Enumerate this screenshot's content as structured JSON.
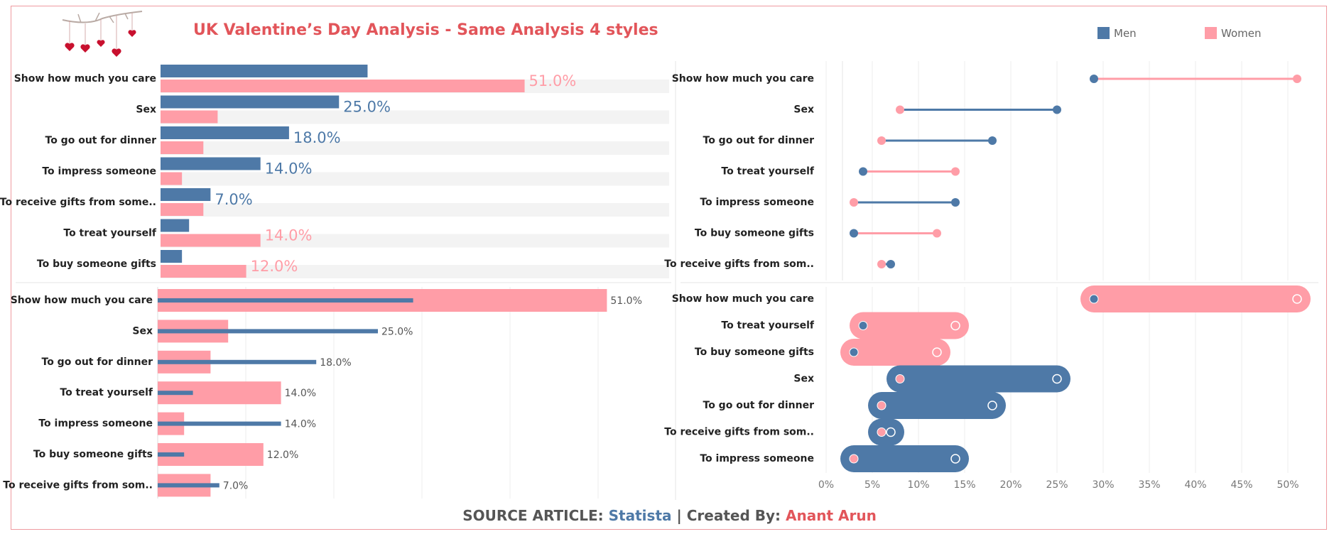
{
  "title": "UK Valentine’s Day Analysis - Same Analysis 4 styles",
  "legend": {
    "men": "Men",
    "women": "Women"
  },
  "colors": {
    "men": "#4e79a7",
    "women": "#ff9da7",
    "title": "#e2555a",
    "band": "#f3f3f3",
    "grid": "#ececec"
  },
  "footer": {
    "source_label": "SOURCE ARTICLE:",
    "source": "Statista",
    "sep": "|",
    "created_label": "Created By:",
    "author": "Anant Arun"
  },
  "decor": {
    "header_icon": "hearts-branch-icon"
  },
  "chart_data": [
    {
      "type": "bar",
      "style": "grouped horizontal bars, labeled on larger bar",
      "title": "",
      "categories": [
        "Show how much you care",
        "Sex",
        "To go out for dinner",
        "To impress someone",
        "To receive gifts from some..",
        "To treat yourself",
        "To buy someone gifts"
      ],
      "series": [
        {
          "name": "Men",
          "values": [
            29,
            25,
            18,
            14,
            7,
            4,
            3
          ]
        },
        {
          "name": "Women",
          "values": [
            51,
            8,
            6,
            3,
            6,
            14,
            12
          ]
        }
      ],
      "labels": [
        {
          "text": "51.0%",
          "series": "Women"
        },
        {
          "text": "25.0%",
          "series": "Men"
        },
        {
          "text": "18.0%",
          "series": "Men"
        },
        {
          "text": "14.0%",
          "series": "Men"
        },
        {
          "text": "7.0%",
          "series": "Men"
        },
        {
          "text": "14.0%",
          "series": "Women"
        },
        {
          "text": "12.0%",
          "series": "Women"
        }
      ],
      "xlim": [
        0,
        60
      ]
    },
    {
      "type": "bar",
      "style": "bullet bars (Women wide bar, Men thin bar)",
      "title": "",
      "categories": [
        "Show how much you care",
        "Sex",
        "To go out for dinner",
        "To treat yourself",
        "To impress someone",
        "To buy someone gifts",
        "To receive gifts from som.."
      ],
      "series": [
        {
          "name": "Men",
          "values": [
            29,
            25,
            18,
            4,
            14,
            3,
            7
          ]
        },
        {
          "name": "Women",
          "values": [
            51,
            8,
            6,
            14,
            3,
            12,
            6
          ]
        }
      ],
      "labels": [
        "51.0%",
        "25.0%",
        "18.0%",
        "14.0%",
        "14.0%",
        "12.0%",
        "7.0%"
      ],
      "xlim": [
        0,
        58
      ]
    },
    {
      "type": "scatter",
      "style": "dumbbell",
      "title": "",
      "categories": [
        "Show how much you care",
        "Sex",
        "To go out for dinner",
        "To treat yourself",
        "To impress someone",
        "To buy someone gifts",
        "To receive gifts from som.."
      ],
      "series": [
        {
          "name": "Men",
          "values": [
            29,
            25,
            18,
            4,
            14,
            3,
            7
          ]
        },
        {
          "name": "Women",
          "values": [
            51,
            8,
            6,
            14,
            3,
            12,
            6
          ]
        }
      ],
      "xlim": [
        0,
        52.5
      ]
    },
    {
      "type": "scatter",
      "style": "capsule dumbbell",
      "title": "",
      "categories": [
        "Show how much you care",
        "To treat yourself",
        "To buy someone gifts",
        "Sex",
        "To go out for dinner",
        "To receive gifts from som..",
        "To impress someone"
      ],
      "series": [
        {
          "name": "Men",
          "values": [
            29,
            4,
            3,
            25,
            18,
            7,
            14
          ]
        },
        {
          "name": "Women",
          "values": [
            51,
            14,
            12,
            8,
            6,
            6,
            3
          ]
        }
      ],
      "xlim": [
        0,
        52.5
      ],
      "xticks": [
        "0%",
        "5%",
        "10%",
        "15%",
        "20%",
        "25%",
        "30%",
        "35%",
        "40%",
        "45%",
        "50%"
      ]
    }
  ]
}
